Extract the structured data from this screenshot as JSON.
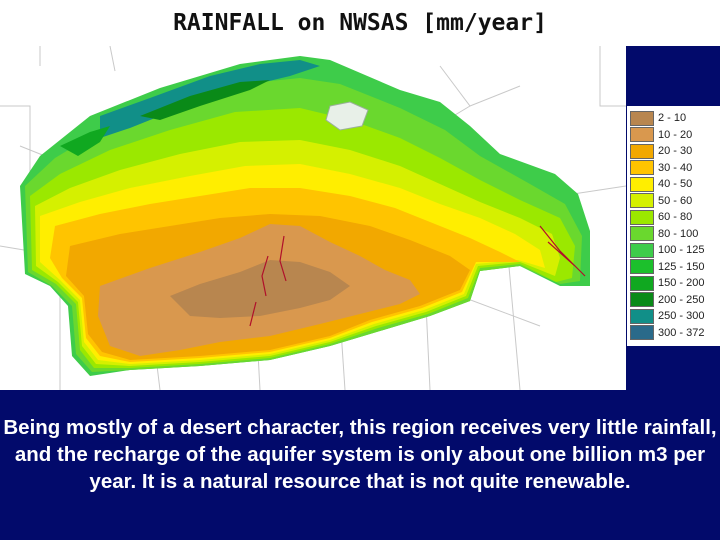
{
  "title": "RAINFALL on NWSAS  [mm/year]",
  "legend": {
    "items": [
      {
        "label": "2 - 10",
        "color": "#b8864f"
      },
      {
        "label": "10 - 20",
        "color": "#d9984e"
      },
      {
        "label": "20 - 30",
        "color": "#f2a800"
      },
      {
        "label": "30 - 40",
        "color": "#ffc400"
      },
      {
        "label": "40 - 50",
        "color": "#ffee00"
      },
      {
        "label": "50 - 60",
        "color": "#d5f000"
      },
      {
        "label": "60 - 80",
        "color": "#9be800"
      },
      {
        "label": "80 - 100",
        "color": "#6ad82e"
      },
      {
        "label": "100 - 125",
        "color": "#3ecc4a"
      },
      {
        "label": "125 - 150",
        "color": "#1cc02c"
      },
      {
        "label": "150 - 200",
        "color": "#10a820"
      },
      {
        "label": "200 - 250",
        "color": "#0a8a18"
      },
      {
        "label": "250 - 300",
        "color": "#118f88"
      },
      {
        "label": "300 - 372",
        "color": "#2a6a8a"
      }
    ]
  },
  "caption": "Being mostly of a desert character, this region receives very little rainfall, and the recharge of the aquifer system is only about one billion m3 per year. It is a natural resource that is not quite renewable."
}
